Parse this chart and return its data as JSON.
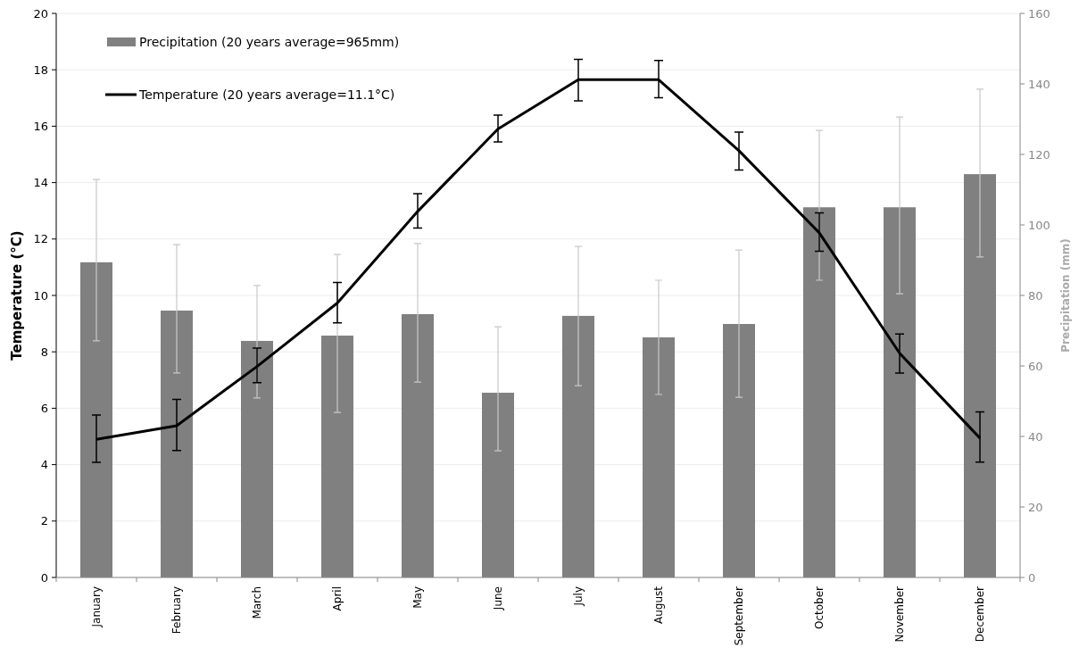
{
  "chart_data": {
    "type": "bar",
    "ylabel": "Temperature (°C)",
    "y2label": "Precipitation (mm)",
    "categories": [
      "January",
      "February",
      "March",
      "April",
      "May",
      "June",
      "July",
      "August",
      "September",
      "October",
      "November",
      "December"
    ],
    "series": [
      {
        "name": "Precipitation (20 years average=965mm)",
        "axis": "y2",
        "color": "#808080",
        "values": [
          89.4,
          75.7,
          67.1,
          68.6,
          74.7,
          52.4,
          74.2,
          68.1,
          71.9,
          105,
          105,
          114.4
        ],
        "errors": [
          [
            67.1,
            112.9
          ],
          [
            58,
            94.4
          ],
          [
            50.9,
            82.8
          ],
          [
            46.8,
            91.6
          ],
          [
            55.4,
            94.7
          ],
          [
            35.9,
            71.1
          ],
          [
            54.4,
            93.9
          ],
          [
            51.9,
            84.3
          ],
          [
            51.1,
            92.9
          ],
          [
            84.3,
            126.8
          ],
          [
            80.5,
            130.6
          ],
          [
            90.9,
            138.5
          ]
        ]
      },
      {
        "name": "Temperature (20 years average=11.1°C)",
        "type": "line",
        "color": "#000000",
        "values": [
          4.9,
          5.38,
          7.48,
          9.73,
          12.98,
          15.9,
          17.65,
          17.65,
          15.13,
          12.22,
          7.95,
          4.94
        ],
        "errors": [
          [
            4.08,
            5.76
          ],
          [
            4.5,
            6.31
          ],
          [
            6.91,
            8.13
          ],
          [
            9.03,
            10.46
          ],
          [
            12.39,
            13.61
          ],
          [
            15.44,
            16.39
          ],
          [
            16.9,
            18.37
          ],
          [
            17.01,
            18.33
          ],
          [
            14.45,
            15.79
          ],
          [
            11.57,
            12.93
          ],
          [
            7.25,
            8.63
          ],
          [
            4.09,
            5.87
          ]
        ]
      }
    ],
    "ylim": [
      0,
      20
    ],
    "yticks": [
      0,
      2,
      4,
      6,
      8,
      10,
      12,
      14,
      16,
      18,
      20
    ],
    "y2lim": [
      0,
      160
    ],
    "y2ticks": [
      0,
      20,
      40,
      60,
      80,
      100,
      120,
      140,
      160
    ],
    "grid": "y",
    "legend": "top left",
    "line_style": "solid"
  }
}
